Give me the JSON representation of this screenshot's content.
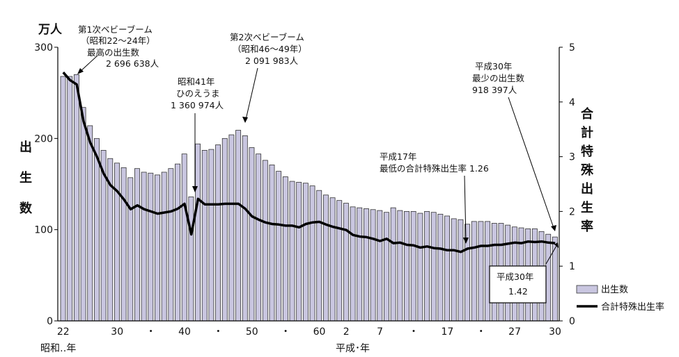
{
  "chart_data": {
    "type": "bar",
    "left_unit": "万人",
    "left_axis_label": [
      "出",
      "生",
      "数"
    ],
    "right_axis_label": [
      "合",
      "計",
      "特",
      "殊",
      "出",
      "生",
      "率"
    ],
    "left_ylim": [
      0,
      300
    ],
    "left_ticks": [
      "0",
      "100",
      "200",
      "300"
    ],
    "right_ylim": [
      0,
      5
    ],
    "right_ticks": [
      "0",
      "1",
      "2",
      "3",
      "4",
      "5"
    ],
    "x_tick_labels": [
      "22",
      "30",
      "・",
      "40",
      "・",
      "50",
      "・",
      "60",
      "2",
      "7",
      "・",
      "17",
      "・",
      "27",
      "30"
    ],
    "x_era_showa": "昭和‥年",
    "x_era_heisei": "平成･年",
    "grid": false,
    "legend_position": "bottom-right",
    "series": [
      {
        "name": "出生数",
        "unit": "万人",
        "values": [
          268,
          268,
          270,
          234,
          214,
          200,
          187,
          178,
          173,
          168,
          157,
          167,
          163,
          162,
          160,
          163,
          167,
          172,
          183,
          136,
          194,
          187,
          188,
          193,
          200,
          204,
          209,
          203,
          190,
          183,
          176,
          171,
          164,
          158,
          153,
          152,
          151,
          148,
          143,
          138,
          135,
          132,
          129,
          125,
          124,
          123,
          122,
          121,
          119,
          124,
          121,
          120,
          120,
          118,
          120,
          119,
          117,
          115,
          112,
          111,
          106,
          109,
          109,
          109,
          107,
          107,
          105,
          103,
          102,
          101,
          101,
          98,
          95,
          92
        ]
      },
      {
        "name": "合計特殊出生率",
        "values": [
          4.54,
          4.4,
          4.32,
          3.65,
          3.26,
          3.0,
          2.69,
          2.48,
          2.37,
          2.22,
          2.04,
          2.11,
          2.04,
          2.0,
          1.96,
          1.98,
          2.0,
          2.05,
          2.14,
          1.58,
          2.23,
          2.13,
          2.13,
          2.13,
          2.14,
          2.14,
          2.14,
          2.05,
          1.91,
          1.85,
          1.8,
          1.77,
          1.76,
          1.74,
          1.74,
          1.71,
          1.77,
          1.8,
          1.81,
          1.76,
          1.72,
          1.69,
          1.66,
          1.57,
          1.54,
          1.53,
          1.5,
          1.46,
          1.5,
          1.42,
          1.43,
          1.39,
          1.38,
          1.34,
          1.36,
          1.33,
          1.32,
          1.29,
          1.29,
          1.26,
          1.32,
          1.34,
          1.37,
          1.37,
          1.39,
          1.39,
          1.41,
          1.43,
          1.42,
          1.45,
          1.44,
          1.45,
          1.43,
          1.42
        ]
      }
    ],
    "annotations": [
      {
        "lines": [
          "第1次ベビーブーム",
          "（昭和22～24年）",
          "最高の出生数",
          "2 696 638人"
        ]
      },
      {
        "lines": [
          "昭和41年",
          "ひのえうま",
          "1 360 974人"
        ]
      },
      {
        "lines": [
          "第2次ベビーブーム",
          "（昭和46～49年）",
          "2 091 983人"
        ]
      },
      {
        "lines": [
          "平成30年",
          "最少の出生数",
          "918 397人"
        ]
      },
      {
        "lines": [
          "平成17年",
          "最低の合計特殊出生率 1.26"
        ]
      },
      {
        "lines": [
          "平成30年",
          "1.42"
        ]
      }
    ]
  }
}
